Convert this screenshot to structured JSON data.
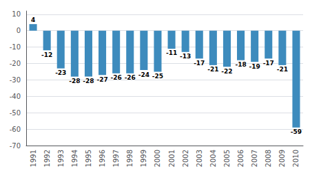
{
  "chart_data": {
    "type": "bar",
    "categories": [
      "1991",
      "1992",
      "1993",
      "1994",
      "1995",
      "1996",
      "1997",
      "1998",
      "1999",
      "2000",
      "2001",
      "2002",
      "2003",
      "2004",
      "2005",
      "2006",
      "2007",
      "2008",
      "2009",
      "2010"
    ],
    "values": [
      4,
      -12,
      -23,
      -28,
      -28,
      -27,
      -26,
      -26,
      -24,
      -25,
      -11,
      -13,
      -17,
      -21,
      -22,
      -18,
      -19,
      -17,
      -21,
      -59
    ],
    "color": "#3D8BBD",
    "ylim": [
      -70,
      12
    ],
    "yticks": [
      10,
      0,
      -10,
      -20,
      -30,
      -40,
      -50,
      -60,
      -70
    ],
    "grid": true,
    "data_labels": true
  }
}
